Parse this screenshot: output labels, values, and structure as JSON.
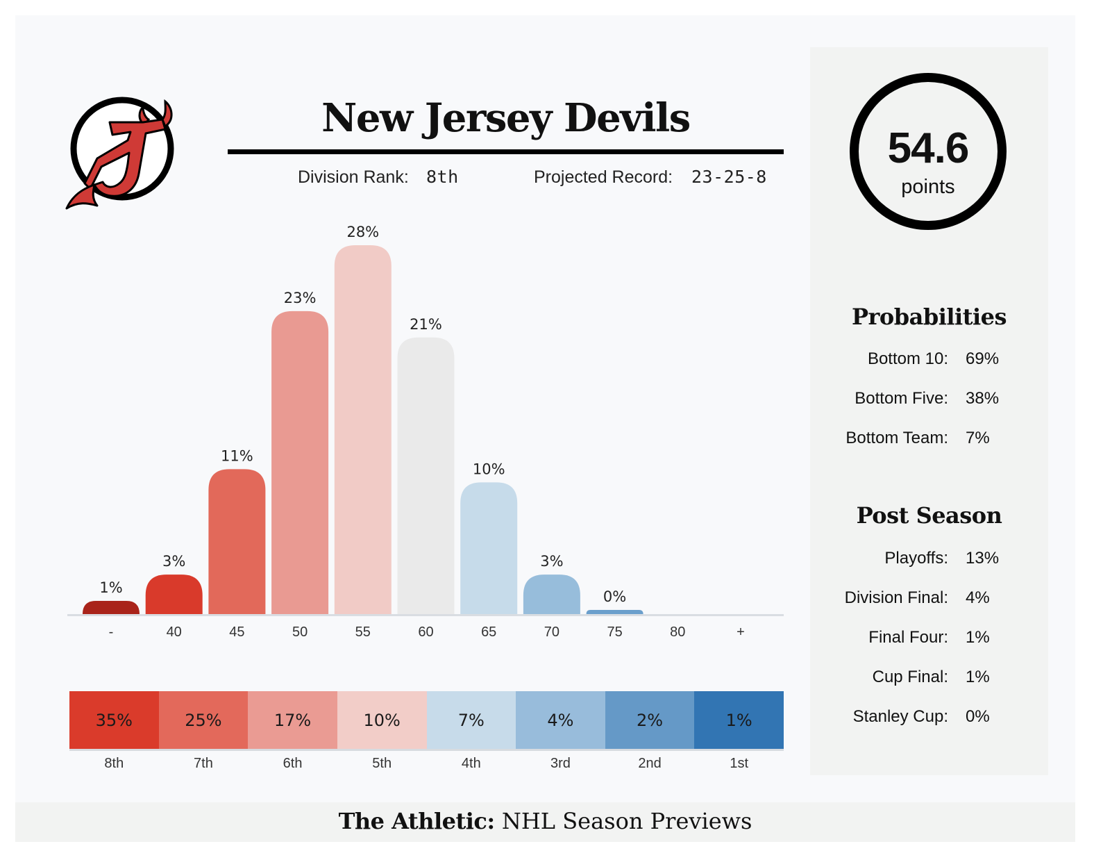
{
  "team": {
    "name": "New Jersey Devils",
    "division_rank_label": "Division Rank:",
    "division_rank": "8th",
    "projected_record_label": "Projected Record:",
    "projected_record": "23-25-8",
    "logo_icon": "devils-logo-icon"
  },
  "points": {
    "value": "54.6",
    "unit": "points"
  },
  "probabilities": {
    "heading": "Probabilities",
    "items": [
      {
        "label": "Bottom 10:",
        "value": "69%"
      },
      {
        "label": "Bottom Five:",
        "value": "38%"
      },
      {
        "label": "Bottom Team:",
        "value": "7%"
      }
    ]
  },
  "post_season": {
    "heading": "Post Season",
    "items": [
      {
        "label": "Playoffs:",
        "value": "13%"
      },
      {
        "label": "Division Final:",
        "value": "4%"
      },
      {
        "label": "Final Four:",
        "value": "1%"
      },
      {
        "label": "Cup Final:",
        "value": "1%"
      },
      {
        "label": "Stanley Cup:",
        "value": "0%"
      }
    ]
  },
  "chart_data": [
    {
      "type": "bar",
      "title": "",
      "xlabel": "",
      "ylabel": "",
      "categories": [
        "-",
        "40",
        "45",
        "50",
        "55",
        "60",
        "65",
        "70",
        "75",
        "80",
        "+"
      ],
      "values": [
        1,
        3,
        11,
        23,
        28,
        21,
        10,
        3,
        0,
        null,
        null
      ],
      "data_labels": [
        "1%",
        "3%",
        "11%",
        "23%",
        "28%",
        "21%",
        "10%",
        "3%",
        "0%",
        "",
        ""
      ],
      "colors": [
        "#a9231a",
        "#d93a2b",
        "#e2695a",
        "#e99a92",
        "#f1cbc6",
        "#eaeaea",
        "#c6dbea",
        "#97bddb",
        "#6b9fcc",
        "#6b9fcc",
        "#6b9fcc"
      ],
      "ylim": [
        0,
        28
      ],
      "grid": false,
      "legend": "none"
    },
    {
      "type": "table",
      "categories": [
        "8th",
        "7th",
        "6th",
        "5th",
        "4th",
        "3rd",
        "2nd",
        "1st"
      ],
      "values": [
        "35%",
        "25%",
        "17%",
        "10%",
        "7%",
        "4%",
        "2%",
        "1%"
      ],
      "colors": [
        "#da3b2b",
        "#e3695b",
        "#ea9b93",
        "#f2cdc8",
        "#c7dbea",
        "#98bcdb",
        "#6599c7",
        "#3275b3"
      ]
    }
  ],
  "footer": {
    "brand": "The Athletic:",
    "text": " NHL Season Previews"
  }
}
